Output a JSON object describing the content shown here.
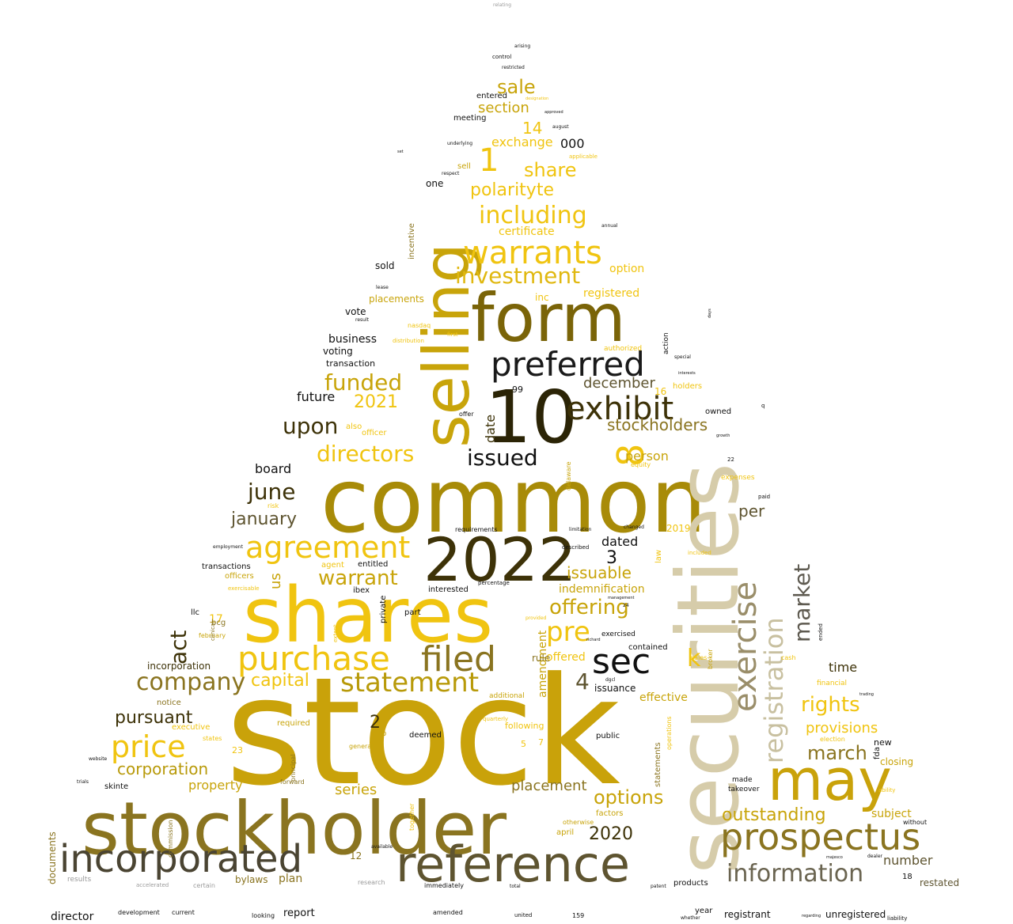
{
  "words": [
    {
      "text": "stock",
      "color": "#c9a20a"
    },
    {
      "text": "common",
      "color": "#a88b08"
    },
    {
      "text": "securities",
      "color": "#d6ccaa"
    },
    {
      "text": "shares",
      "color": "#f0c410"
    },
    {
      "text": "stockholder",
      "color": "#8a7420"
    },
    {
      "text": "2022",
      "color": "#3d3208"
    },
    {
      "text": "10",
      "color": "#2b2406"
    },
    {
      "text": "form",
      "color": "#7a6408"
    },
    {
      "text": "selling",
      "color": "#c8a40a"
    },
    {
      "text": "may",
      "color": "#c9a20a"
    },
    {
      "text": "reference",
      "color": "#5e5430"
    },
    {
      "text": "incorporated",
      "color": "#4a4432"
    },
    {
      "text": "prospectus",
      "color": "#8a7420"
    },
    {
      "text": "preferred",
      "color": "#1a1a1a"
    },
    {
      "text": "filed",
      "color": "#8a7420"
    },
    {
      "text": "sec",
      "color": "#111111"
    },
    {
      "text": "purchase",
      "color": "#f0c410"
    },
    {
      "text": "agreement",
      "color": "#f0c410"
    },
    {
      "text": "exercise",
      "color": "#9a8e6a"
    },
    {
      "text": "registration",
      "color": "#c8c0a0"
    },
    {
      "text": "exhibit",
      "color": "#3d3208"
    },
    {
      "text": "warrants",
      "color": "#f0c410"
    },
    {
      "text": "statement",
      "color": "#b89a0a"
    },
    {
      "text": "price",
      "color": "#f0c410"
    },
    {
      "text": "information",
      "color": "#6a6450"
    },
    {
      "text": "company",
      "color": "#8a7420"
    },
    {
      "text": "including",
      "color": "#f0c410"
    },
    {
      "text": "investment",
      "color": "#e0b810"
    },
    {
      "text": "pre",
      "color": "#f0c410"
    },
    {
      "text": "market",
      "color": "#5e5a50"
    },
    {
      "text": "8",
      "color": "#f0c410"
    },
    {
      "text": "directors",
      "color": "#f0c410"
    },
    {
      "text": "issued",
      "color": "#111111"
    },
    {
      "text": "upon",
      "color": "#3d3208"
    },
    {
      "text": "funded",
      "color": "#c8a40a"
    },
    {
      "text": "act",
      "color": "#3d3208"
    },
    {
      "text": "warrant",
      "color": "#c8a40a"
    },
    {
      "text": "offering",
      "color": "#c8a40a"
    },
    {
      "text": "rights",
      "color": "#f0c410"
    },
    {
      "text": "june",
      "color": "#3d3208"
    },
    {
      "text": "options",
      "color": "#c8a40a"
    },
    {
      "text": "march",
      "color": "#8a7420"
    },
    {
      "text": "capital",
      "color": "#f0c410"
    },
    {
      "text": "outstanding",
      "color": "#c8a40a"
    },
    {
      "text": "k",
      "color": "#f0c410"
    },
    {
      "text": "1",
      "color": "#f0c410"
    },
    {
      "text": "sale",
      "color": "#c8a40a"
    },
    {
      "text": "share",
      "color": "#f0c410"
    },
    {
      "text": "polarityte",
      "color": "#f0c410"
    },
    {
      "text": "stockholders",
      "color": "#8a7420"
    },
    {
      "text": "january",
      "color": "#5e5430"
    },
    {
      "text": "corporation",
      "color": "#b89a0a"
    },
    {
      "text": "pursuant",
      "color": "#3d3208"
    },
    {
      "text": "2020",
      "color": "#3d3208"
    },
    {
      "text": "placement",
      "color": "#8a7420"
    },
    {
      "text": "issuable",
      "color": "#c8a40a"
    },
    {
      "text": "december",
      "color": "#5e5430"
    },
    {
      "text": "4",
      "color": "#5e5430"
    },
    {
      "text": "2021",
      "color": "#f0c410"
    },
    {
      "text": "provisions",
      "color": "#f0c410"
    },
    {
      "text": "property",
      "color": "#c8a40a"
    },
    {
      "text": "series",
      "color": "#c8a40a"
    },
    {
      "text": "section",
      "color": "#c8a40a"
    },
    {
      "text": "14",
      "color": "#f0c410"
    },
    {
      "text": "exchange",
      "color": "#f0c410"
    },
    {
      "text": "000",
      "color": "#111111"
    },
    {
      "text": "per",
      "color": "#5e5430"
    },
    {
      "text": "dated",
      "color": "#111111"
    },
    {
      "text": "3",
      "color": "#111111"
    },
    {
      "text": "future",
      "color": "#111111"
    },
    {
      "text": "board",
      "color": "#111111"
    },
    {
      "text": "person",
      "color": "#c8a40a"
    },
    {
      "text": "time",
      "color": "#3d3208"
    },
    {
      "text": "2",
      "color": "#3d3208"
    },
    {
      "text": "number",
      "color": "#5e5430"
    },
    {
      "text": "subject",
      "color": "#c8a40a"
    },
    {
      "text": "indemnification",
      "color": "#c8a40a"
    },
    {
      "text": "date",
      "color": "#3d3208"
    },
    {
      "text": "business",
      "color": "#111111"
    },
    {
      "text": "registered",
      "color": "#f0c410"
    },
    {
      "text": "certificate",
      "color": "#f0c410"
    },
    {
      "text": "option",
      "color": "#f0c410"
    },
    {
      "text": "effective",
      "color": "#c8a40a"
    },
    {
      "text": "amendment",
      "color": "#c8a40a"
    },
    {
      "text": "offered",
      "color": "#f0c410"
    },
    {
      "text": "closing",
      "color": "#c8a40a"
    },
    {
      "text": "issuance",
      "color": "#111111"
    },
    {
      "text": "restated",
      "color": "#5e5430"
    },
    {
      "text": "incorporation",
      "color": "#3d3208"
    },
    {
      "text": "plan",
      "color": "#8a7420"
    },
    {
      "text": "report",
      "color": "#111111"
    },
    {
      "text": "registrant",
      "color": "#111111"
    },
    {
      "text": "unregistered",
      "color": "#111111"
    },
    {
      "text": "director",
      "color": "#111111"
    },
    {
      "text": "us",
      "color": "#c8a40a"
    },
    {
      "text": "17",
      "color": "#f0c410"
    },
    {
      "text": "documents",
      "color": "#8a7420"
    },
    {
      "text": "12",
      "color": "#8a7420"
    },
    {
      "text": "18",
      "color": "#111111"
    },
    {
      "text": "bylaws",
      "color": "#8a7420"
    },
    {
      "text": "new",
      "color": "#111111"
    },
    {
      "text": "fda",
      "color": "#111111"
    },
    {
      "text": "inc",
      "color": "#f0c410"
    },
    {
      "text": "sold",
      "color": "#111111"
    },
    {
      "text": "placements",
      "color": "#c8a40a"
    },
    {
      "text": "vote",
      "color": "#111111"
    },
    {
      "text": "voting",
      "color": "#111111"
    },
    {
      "text": "transaction",
      "color": "#111111"
    },
    {
      "text": "meeting",
      "color": "#111111"
    },
    {
      "text": "entered",
      "color": "#111111"
    },
    {
      "text": "one",
      "color": "#111111"
    },
    {
      "text": "incentive",
      "color": "#8a7420"
    },
    {
      "text": "sell",
      "color": "#c8a40a"
    },
    {
      "text": "99",
      "color": "#111111"
    },
    {
      "text": "16",
      "color": "#f0c410"
    },
    {
      "text": "holders",
      "color": "#f0c410"
    },
    {
      "text": "2019",
      "color": "#f0c410"
    },
    {
      "text": "rule",
      "color": "#8a7420"
    },
    {
      "text": "following",
      "color": "#f0c410"
    },
    {
      "text": "deemed",
      "color": "#111111"
    },
    {
      "text": "public",
      "color": "#111111"
    },
    {
      "text": "skinte",
      "color": "#111111"
    },
    {
      "text": "executive",
      "color": "#f0c410"
    },
    {
      "text": "required",
      "color": "#c8a40a"
    },
    {
      "text": "notice",
      "color": "#8a7420"
    },
    {
      "text": "officers",
      "color": "#c8a40a"
    },
    {
      "text": "transactions",
      "color": "#111111"
    },
    {
      "text": "entitled",
      "color": "#111111"
    },
    {
      "text": "interested",
      "color": "#111111"
    },
    {
      "text": "agent",
      "color": "#f0c410"
    },
    {
      "text": "also",
      "color": "#f0c410"
    },
    {
      "text": "officer",
      "color": "#f0c410"
    },
    {
      "text": "exercised",
      "color": "#111111"
    },
    {
      "text": "contained",
      "color": "#111111"
    },
    {
      "text": "factors",
      "color": "#c8a40a"
    },
    {
      "text": "april",
      "color": "#c8a40a"
    },
    {
      "text": "additional",
      "color": "#c8a40a"
    },
    {
      "text": "5",
      "color": "#f0c410"
    },
    {
      "text": "7",
      "color": "#f0c410"
    },
    {
      "text": "23",
      "color": "#f0c410"
    },
    {
      "text": "law",
      "color": "#f0c410"
    },
    {
      "text": "action",
      "color": "#111111"
    },
    {
      "text": "owned",
      "color": "#111111"
    },
    {
      "text": "b",
      "color": "#c8a40a"
    },
    {
      "text": "ibex",
      "color": "#111111"
    },
    {
      "text": "private",
      "color": "#111111"
    },
    {
      "text": "part",
      "color": "#111111"
    },
    {
      "text": "llc",
      "color": "#111111"
    },
    {
      "text": "bcg",
      "color": "#8a7420"
    },
    {
      "text": "year",
      "color": "#111111"
    },
    {
      "text": "whether",
      "color": "#111111"
    },
    {
      "text": "products",
      "color": "#111111"
    },
    {
      "text": "development",
      "color": "#111111"
    },
    {
      "text": "current",
      "color": "#111111"
    },
    {
      "text": "looking",
      "color": "#111111"
    },
    {
      "text": "amended",
      "color": "#111111"
    },
    {
      "text": "united",
      "color": "#111111"
    },
    {
      "text": "159",
      "color": "#111111"
    },
    {
      "text": "results",
      "color": "#9a9a9a"
    },
    {
      "text": "accelerated",
      "color": "#9a9a9a"
    },
    {
      "text": "certain",
      "color": "#9a9a9a"
    },
    {
      "text": "research",
      "color": "#9a9a9a"
    },
    {
      "text": "immediately",
      "color": "#111111"
    },
    {
      "text": "trials",
      "color": "#111111"
    },
    {
      "text": "website",
      "color": "#111111"
    },
    {
      "text": "february",
      "color": "#c8a40a"
    },
    {
      "text": "financial",
      "color": "#f0c410"
    },
    {
      "text": "expenses",
      "color": "#f0c410"
    },
    {
      "text": "paid",
      "color": "#111111"
    },
    {
      "text": "cash",
      "color": "#f0c410"
    },
    {
      "text": "equity",
      "color": "#f0c410"
    },
    {
      "text": "takeover",
      "color": "#111111"
    },
    {
      "text": "made",
      "color": "#111111"
    },
    {
      "text": "election",
      "color": "#f0c410"
    },
    {
      "text": "ability",
      "color": "#f0c410"
    },
    {
      "text": "without",
      "color": "#111111"
    },
    {
      "text": "delaware",
      "color": "#c8a40a"
    },
    {
      "text": "requirements",
      "color": "#111111"
    },
    {
      "text": "percentage",
      "color": "#111111"
    },
    {
      "text": "relating",
      "color": "#9a9a9a"
    },
    {
      "text": "arising",
      "color": "#111111"
    },
    {
      "text": "control",
      "color": "#111111"
    },
    {
      "text": "restricted",
      "color": "#111111"
    },
    {
      "text": "august",
      "color": "#111111"
    },
    {
      "text": "underlying",
      "color": "#111111"
    },
    {
      "text": "respect",
      "color": "#111111"
    },
    {
      "text": "annual",
      "color": "#111111"
    },
    {
      "text": "lease",
      "color": "#111111"
    },
    {
      "text": "result",
      "color": "#111111"
    },
    {
      "text": "risk",
      "color": "#f0c410"
    },
    {
      "text": "nasdaq",
      "color": "#f0c410"
    },
    {
      "text": "distribution",
      "color": "#f0c410"
    },
    {
      "text": "first",
      "color": "#f0c410"
    },
    {
      "text": "authorized",
      "color": "#f0c410"
    },
    {
      "text": "applicable",
      "color": "#f0c410"
    },
    {
      "text": "designation",
      "color": "#f0c410"
    },
    {
      "text": "approved",
      "color": "#111111"
    },
    {
      "text": "special",
      "color": "#111111"
    },
    {
      "text": "interests",
      "color": "#111111"
    },
    {
      "text": "statements",
      "color": "#8a7420"
    },
    {
      "text": "operations",
      "color": "#f0c410"
    },
    {
      "text": "sales",
      "color": "#f0c410"
    },
    {
      "text": "included",
      "color": "#f0c410"
    },
    {
      "text": "commission",
      "color": "#8a7420"
    },
    {
      "text": "principal",
      "color": "#8a7420"
    },
    {
      "text": "forward",
      "color": "#8a7420"
    },
    {
      "text": "general",
      "color": "#c8a40a"
    },
    {
      "text": "states",
      "color": "#f0c410"
    },
    {
      "text": "otherwise",
      "color": "#c8a40a"
    },
    {
      "text": "broker",
      "color": "#c8a40a"
    },
    {
      "text": "quarterly",
      "color": "#f0c410"
    },
    {
      "text": "dgcl",
      "color": "#111111"
    },
    {
      "text": "limitation",
      "color": "#111111"
    },
    {
      "text": "described",
      "color": "#111111"
    },
    {
      "text": "changed",
      "color": "#111111"
    },
    {
      "text": "employment",
      "color": "#111111"
    },
    {
      "text": "exercisable",
      "color": "#f0c410"
    },
    {
      "text": "together",
      "color": "#f0c410"
    },
    {
      "text": "available",
      "color": "#111111"
    },
    {
      "text": "clinical",
      "color": "#8a7420"
    },
    {
      "text": "extent",
      "color": "#f0c410"
    },
    {
      "text": "provided",
      "color": "#f0c410"
    },
    {
      "text": "regarding",
      "color": "#111111"
    },
    {
      "text": "trading",
      "color": "#111111"
    },
    {
      "text": "ended",
      "color": "#111111"
    },
    {
      "text": "q",
      "color": "#111111"
    },
    {
      "text": "22",
      "color": "#111111"
    },
    {
      "text": "24",
      "color": "#111111"
    },
    {
      "text": "growth",
      "color": "#111111"
    },
    {
      "text": "offer",
      "color": "#111111"
    },
    {
      "text": "set",
      "color": "#111111"
    },
    {
      "text": "days",
      "color": "#111111"
    },
    {
      "text": "management",
      "color": "#111111"
    },
    {
      "text": "richard",
      "color": "#111111"
    },
    {
      "text": "majesco",
      "color": "#111111"
    },
    {
      "text": "dealer",
      "color": "#111111"
    },
    {
      "text": "patent",
      "color": "#111111"
    },
    {
      "text": "liability",
      "color": "#111111"
    },
    {
      "text": "total",
      "color": "#111111"
    },
    {
      "text": "sold",
      "color": "#111111"
    }
  ]
}
